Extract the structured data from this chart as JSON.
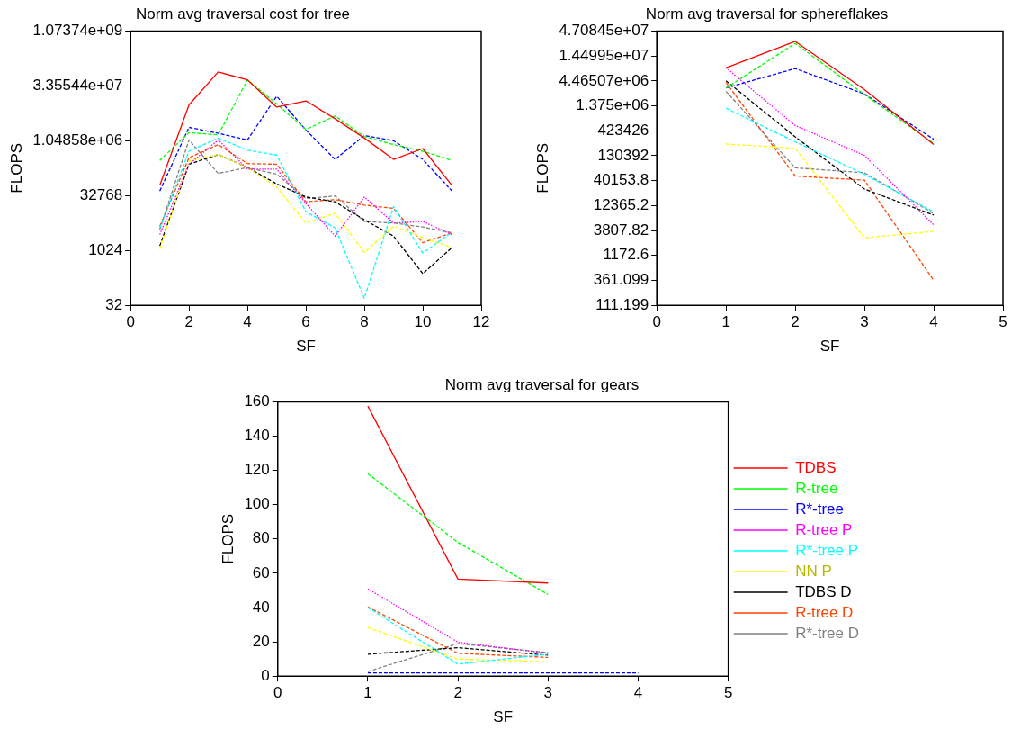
{
  "chart_data": [
    {
      "type": "line",
      "title": "Norm avg traversal cost for tree",
      "xlabel": "SF",
      "ylabel": "FLOPS",
      "log": true,
      "grid": false,
      "legend": false,
      "x": [
        1,
        2,
        3,
        4,
        5,
        6,
        7,
        8,
        9,
        10,
        11
      ],
      "xlim": [
        0,
        12
      ],
      "xticks": [
        0,
        2,
        4,
        6,
        8,
        10,
        12
      ],
      "ylim": [
        32,
        1073741824
      ],
      "yticks": [
        32,
        1024,
        32768,
        {
          "value": 1048576,
          "label": "1.04858e+06"
        },
        {
          "value": 33554432,
          "label": "3.35544e+07"
        },
        {
          "value": 1073741824,
          "label": "1.07374e+09"
        }
      ],
      "series": [
        {
          "color": "#ff0000",
          "line_style": "solid",
          "values": [
            62000,
            10100000,
            81000000,
            49000000,
            8800000,
            13000000,
            4200000,
            1240000,
            323000,
            640000,
            62000
          ]
        },
        {
          "color": "#00ff00",
          "line_style": "dashed",
          "values": [
            303000,
            1750000,
            1520000,
            49000000,
            10700000,
            2150000,
            5000000,
            1370000,
            820000,
            540000,
            303000
          ]
        },
        {
          "color": "#0000ff",
          "line_style": "dashed",
          "values": [
            43800,
            2440000,
            1680000,
            1100000,
            17400000,
            2070000,
            323000,
            1460000,
            1050000,
            323000,
            43800
          ]
        },
        {
          "color": "#ff00ff",
          "line_style": "dotted",
          "values": [
            2800,
            237000,
            1100000,
            174000,
            174000,
            20000,
            2540,
            30000,
            5800,
            6400,
            2800
          ]
        },
        {
          "color": "#00ffff",
          "line_style": "dashed",
          "values": [
            4250,
            540000,
            1240000,
            578000,
            424000,
            11900,
            4250,
            50,
            16300,
            870,
            3250
          ]
        },
        {
          "color": "#ffff00",
          "line_style": "dashed",
          "values": [
            1110,
            291000,
            440000,
            193000,
            55900,
            5800,
            10700,
            905,
            4700,
            2290,
            1230
          ]
        },
        {
          "color": "#000000",
          "line_style": "dashed",
          "values": [
            1370,
            237000,
            440000,
            193000,
            68800,
            30000,
            22100,
            7100,
            2540,
            237,
            1230
          ]
        },
        {
          "color": "#ff4500",
          "line_style": "dashed",
          "values": [
            4700,
            357000,
            820000,
            248000,
            237000,
            22100,
            25500,
            18000,
            14600,
            1680,
            3120
          ]
        },
        {
          "color": "#808080",
          "line_style": "dashed",
          "values": [
            3830,
            1100000,
            133000,
            193000,
            127000,
            27200,
            32100,
            6400,
            5800,
            4500,
            3120
          ]
        }
      ]
    },
    {
      "type": "line",
      "title": "Norm avg traversal for sphereflakes",
      "xlabel": "SF",
      "ylabel": "FLOPS",
      "log": true,
      "grid": false,
      "legend": false,
      "x": [
        1,
        2,
        3,
        4
      ],
      "xlim": [
        0,
        5
      ],
      "xticks": [
        0,
        1,
        2,
        3,
        4,
        5
      ],
      "ylim": [
        111.199,
        47084500
      ],
      "yticks": [
        111.199,
        361.099,
        1172.6,
        3807.82,
        12365.2,
        40153.8,
        130392,
        423426,
        {
          "value": 1375000,
          "label": "1.375e+06"
        },
        {
          "value": 4465070,
          "label": "4.46507e+06"
        },
        {
          "value": 14499500,
          "label": "1.44995e+07"
        },
        {
          "value": 47084500,
          "label": "4.70845e+07"
        }
      ],
      "series": [
        {
          "color": "#ff0000",
          "line_style": "solid",
          "values": [
            8270000,
            28800000,
            2950000,
            222000
          ]
        },
        {
          "color": "#00ff00",
          "line_style": "dashed",
          "values": [
            3180000,
            26200000,
            2340000,
            233000
          ]
        },
        {
          "color": "#0000ff",
          "line_style": "dashed",
          "values": [
            3200000,
            8000000,
            2400000,
            284000
          ]
        },
        {
          "color": "#ff00ff",
          "line_style": "dotted",
          "values": [
            8270000,
            543000,
            132000,
            4970
          ]
        },
        {
          "color": "#00ffff",
          "line_style": "dashed",
          "values": [
            1230000,
            251000,
            54000,
            9200
          ]
        },
        {
          "color": "#ffff00",
          "line_style": "dashed",
          "values": [
            226000,
            185000,
            2690,
            3660
          ]
        },
        {
          "color": "#000000",
          "line_style": "dashed",
          "values": [
            4470000,
            317000,
            27000,
            7880
          ]
        },
        {
          "color": "#ff4500",
          "line_style": "dashed",
          "values": [
            4130000,
            50000,
            40900,
            363
          ]
        },
        {
          "color": "#808080",
          "line_style": "dashed",
          "values": [
            2730000,
            73500,
            58300,
            8500
          ]
        }
      ]
    },
    {
      "type": "line",
      "title": "Norm avg traversal for gears",
      "xlabel": "SF",
      "ylabel": "FLOPS",
      "grid": false,
      "legend": "right",
      "x": [
        1,
        2,
        3,
        4
      ],
      "xlim": [
        0,
        5
      ],
      "xticks": [
        0,
        1,
        2,
        3,
        4,
        5
      ],
      "ylim": [
        0,
        160
      ],
      "yticks": [
        0,
        20,
        40,
        60,
        80,
        100,
        120,
        140,
        160
      ],
      "series": [
        {
          "name": "TDBS",
          "color": "#ff0000",
          "line_style": "solid",
          "values": [
            157.5,
            56.6,
            54.3,
            null
          ]
        },
        {
          "name": "R-tree",
          "color": "#00ff00",
          "line_style": "dashed",
          "values": [
            118.1,
            78,
            47.6,
            null
          ]
        },
        {
          "name": "R*-tree",
          "color": "#0000ff",
          "line_style": "dashed",
          "values": [
            1.9,
            1.9,
            1.9,
            1.9
          ]
        },
        {
          "name": "R-tree P",
          "color": "#ff00ff",
          "line_style": "dotted",
          "values": [
            50.9,
            19.8,
            13.3,
            null
          ]
        },
        {
          "name": "R*-tree P",
          "color": "#00ffff",
          "line_style": "dashed",
          "values": [
            40,
            7,
            12.8,
            null
          ]
        },
        {
          "name": "NN P",
          "color": "#ffff00",
          "line_style": "dashed",
          "values": [
            28.4,
            9.9,
            8.4,
            null
          ]
        },
        {
          "name": "TDBS D",
          "color": "#000000",
          "line_style": "dashed",
          "values": [
            12.8,
            16.6,
            12.2,
            null
          ]
        },
        {
          "name": "R-tree D",
          "color": "#ff4500",
          "line_style": "dashed",
          "values": [
            40.4,
            13.3,
            10.9,
            null
          ]
        },
        {
          "name": "R*-tree D",
          "color": "#808080",
          "line_style": "dashed",
          "values": [
            2.7,
            19,
            13.7,
            null
          ]
        }
      ]
    }
  ]
}
